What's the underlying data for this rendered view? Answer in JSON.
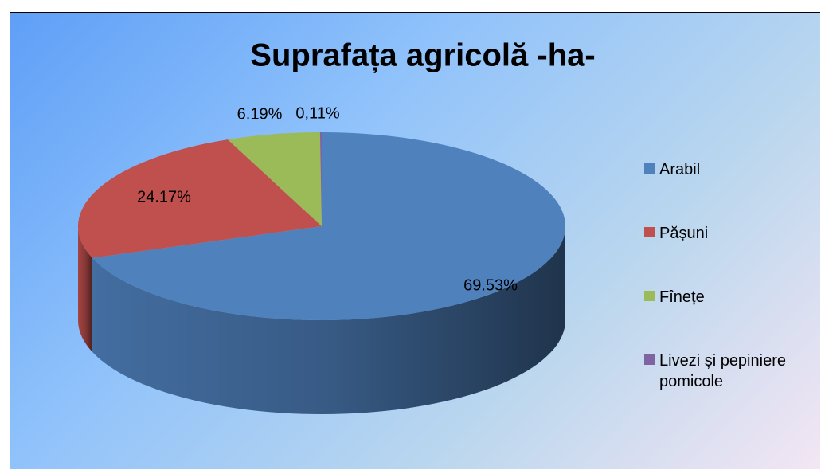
{
  "chart_data": {
    "type": "pie",
    "title": "Suprafața agricolă  -ha-",
    "categories": [
      "Arabil",
      "Pășuni",
      "Fînețe",
      "Livezi și pepiniere pomicole"
    ],
    "values": [
      69.53,
      24.17,
      6.19,
      0.11
    ],
    "value_labels": [
      "69.53%",
      "24.17%",
      "6.19%",
      "0,11%"
    ],
    "colors": [
      "#4f81bd",
      "#c0504d",
      "#9bbb59",
      "#8064a2"
    ],
    "legend": "right"
  }
}
